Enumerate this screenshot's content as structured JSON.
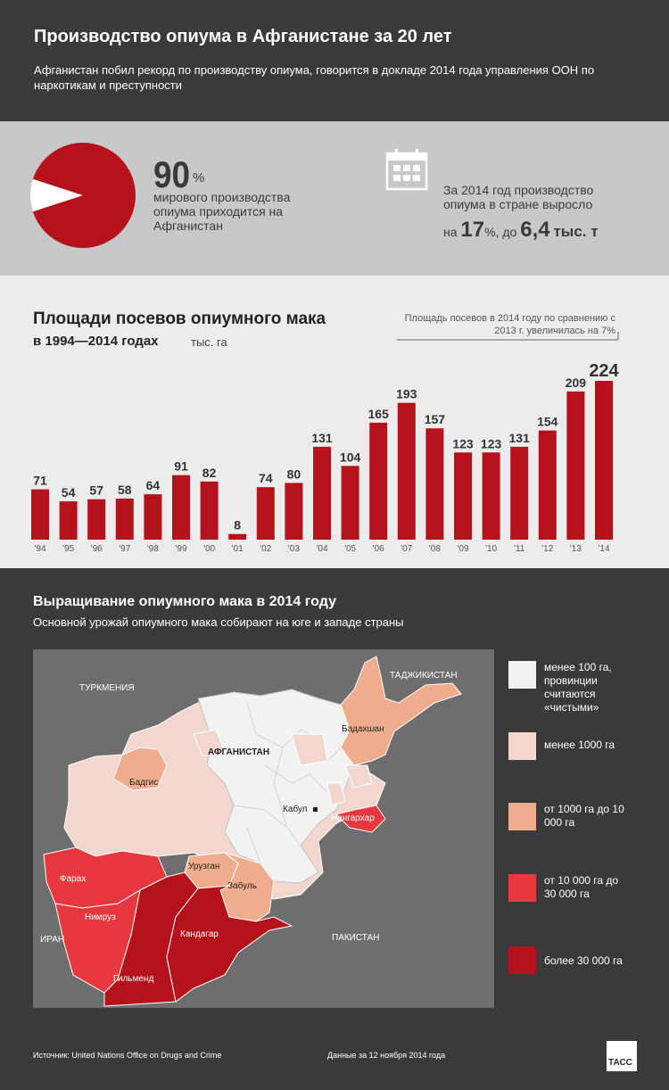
{
  "header": {
    "title": "Производство опиума в Афганистане за 20 лет",
    "subtitle": "Афганистан побил рекорд по производству опиума, говорится в докладе 2014 года управления ООН по наркотикам и преступности"
  },
  "stats": {
    "world_share_value": "90",
    "world_share_unit": "%",
    "world_share_text": "мирового производства опиума приходится на Афганистан",
    "world_share_fraction": 0.9,
    "growth_text": "За 2014 год производство опиума в стране выросло",
    "growth_prefix": "на",
    "growth_pct": "17",
    "growth_pct_unit": "%,",
    "growth_to": "до",
    "growth_amount": "6,4",
    "growth_amount_unit": "тыс. т",
    "icon": "calendar-icon"
  },
  "chart": {
    "title_line1": "Площади посевов опиумного мака",
    "title_line2": "в 1994—2014 годах",
    "unit": "тыс. га",
    "note": "Площадь посевов в 2014 году по сравнению с 2013 г. увеличилась на 7%"
  },
  "chart_data": {
    "type": "bar",
    "categories": [
      "'94",
      "'95",
      "'96",
      "'97",
      "'98",
      "'99",
      "'00",
      "'01",
      "'02",
      "'03",
      "'04",
      "'05",
      "'06",
      "'07",
      "'08",
      "'09",
      "'10",
      "'11",
      "'12",
      "'13",
      "'14"
    ],
    "values": [
      71,
      54,
      57,
      58,
      64,
      91,
      82,
      8,
      74,
      80,
      131,
      104,
      165,
      193,
      157,
      123,
      123,
      131,
      154,
      209,
      224
    ],
    "ylim": [
      0,
      224
    ],
    "title": "Площади посевов опиумного мака в 1994—2014 годах",
    "ylabel": "тыс. га",
    "bar_color": "#b5121b"
  },
  "map": {
    "title": "Выращивание опиумного мака в 2014 году",
    "subtitle": "Основной урожай опиумного мака собирают на юге и западе страны",
    "labels": {
      "turkmenistan": "ТУРКМЕНИЯ",
      "tajikistan": "ТАДЖИКИСТАН",
      "iran": "ИРАН",
      "pakistan": "ПАКИСТАН",
      "afghanistan": "АФГАНИСТАН",
      "badakhshan": "Бадахшан",
      "badghis": "Бадгис",
      "kabul": "Кабул",
      "nangarhar": "Нангархар",
      "farah": "Фарах",
      "nimruz": "Нимруз",
      "uruzgan": "Урузган",
      "zabul": "Забуль",
      "kandahar": "Кандагар",
      "helmand": "Гильменд"
    }
  },
  "legend": [
    {
      "label": "менее 100 га, провинции считаются «чистыми»",
      "color": "#f2f2f2"
    },
    {
      "label": "менее 1000 га",
      "color": "#f3d7cf"
    },
    {
      "label": "от 1000 га до 10 000 га",
      "color": "#f0ad8d"
    },
    {
      "label": "от 10 000 га до 30 000 га",
      "color": "#e8373f"
    },
    {
      "label": "более 30 000 га",
      "color": "#b5121b"
    }
  ],
  "footer": {
    "source": "Источник: United Nations Office on Drugs and Crime",
    "date": "Данные за 12 ноября 2014 года",
    "logo": "ТАСС"
  }
}
